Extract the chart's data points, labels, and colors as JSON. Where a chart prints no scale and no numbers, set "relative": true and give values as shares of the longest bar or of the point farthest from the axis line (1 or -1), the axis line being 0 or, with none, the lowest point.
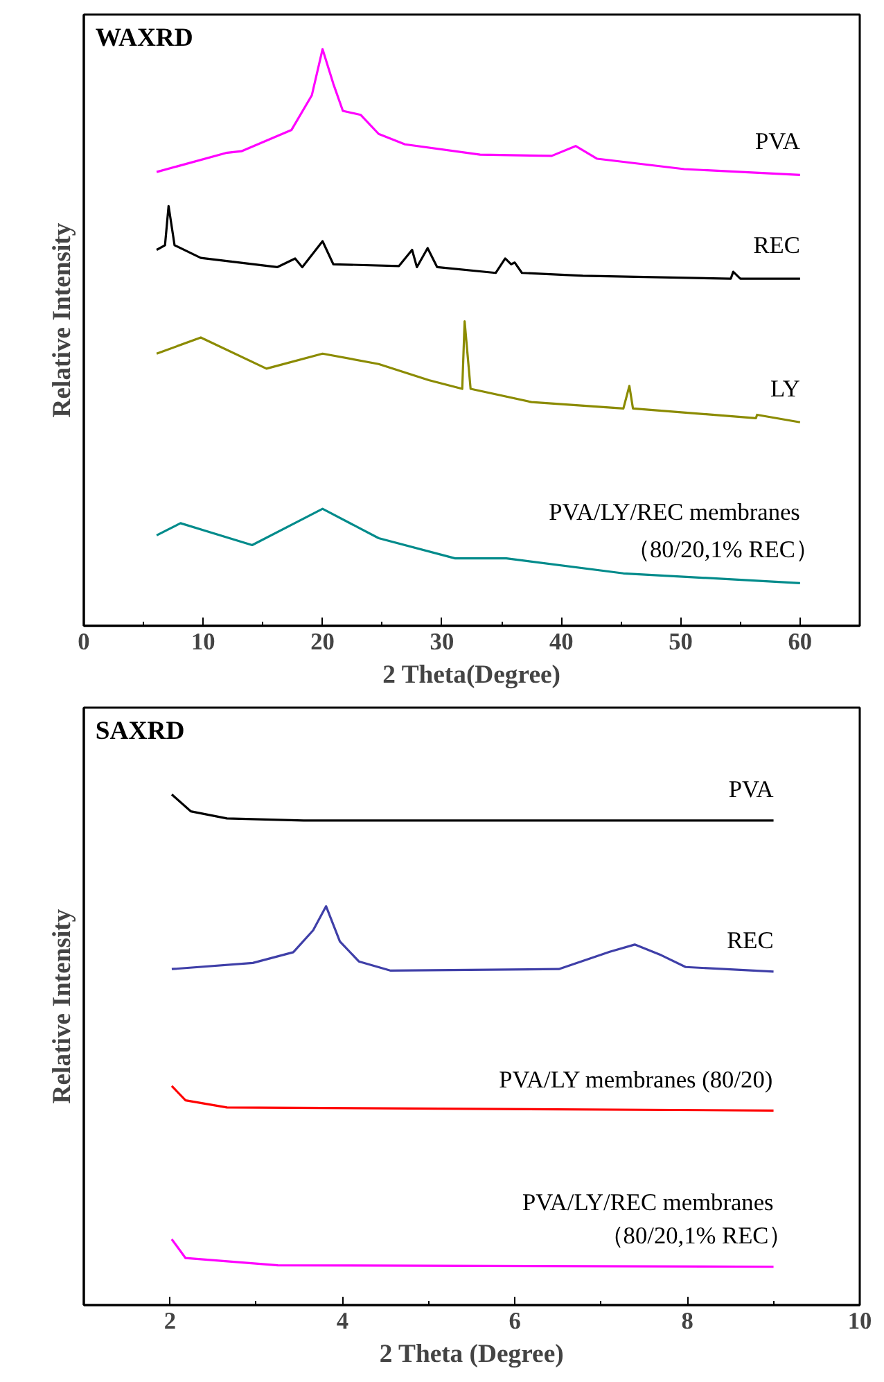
{
  "chart_data": [
    {
      "type": "line",
      "title": "WAXRD",
      "relative": true,
      "xlabel": "2 Theta(Degree)",
      "ylabel": "Relative Intensity",
      "xlim": [
        0,
        65
      ],
      "xticks": [
        0,
        {
          "value": 5,
          "label": null
        },
        10,
        {
          "value": 15,
          "label": null
        },
        20,
        {
          "value": 25,
          "label": null
        },
        30,
        {
          "value": 35,
          "label": null
        },
        40,
        {
          "value": 45,
          "label": null
        },
        50,
        {
          "value": 55,
          "label": null
        },
        60
      ],
      "grid": false,
      "tick_labels": "x",
      "series": [
        {
          "name": "PVA",
          "color": "#ff00ff",
          "x": [
            6.1,
            11.9,
            13.2,
            17.4,
            19.1,
            20.0,
            20.9,
            21.7,
            23.2,
            24.7,
            26.9,
            33.2,
            39.2,
            41.2,
            43.0,
            50.3,
            60
          ],
          "values": [
            0.787,
            0.82,
            0.823,
            0.86,
            0.92,
            1.0,
            0.94,
            0.893,
            0.886,
            0.853,
            0.835,
            0.817,
            0.815,
            0.832,
            0.81,
            0.792,
            0.782
          ]
        },
        {
          "name": "REC",
          "color": "#000000",
          "x": [
            6.1,
            6.8,
            7.1,
            7.6,
            9.8,
            16.2,
            17.7,
            18.3,
            20.0,
            20.9,
            26.4,
            27.5,
            27.9,
            28.8,
            29.6,
            34.5,
            35.3,
            35.8,
            36.1,
            36.7,
            41.8,
            54.2,
            54.4,
            55.0,
            60
          ],
          "values": [
            0.652,
            0.66,
            0.728,
            0.66,
            0.638,
            0.622,
            0.637,
            0.622,
            0.667,
            0.627,
            0.624,
            0.652,
            0.622,
            0.655,
            0.622,
            0.612,
            0.637,
            0.627,
            0.63,
            0.612,
            0.607,
            0.602,
            0.614,
            0.602,
            0.602
          ]
        },
        {
          "name": "LY",
          "color": "#8b8b00",
          "x": [
            6.1,
            9.8,
            15.3,
            20.0,
            24.7,
            28.9,
            31.7,
            31.9,
            32.4,
            37.5,
            45.2,
            45.7,
            46.0,
            56.3,
            56.4,
            60
          ],
          "values": [
            0.472,
            0.5,
            0.446,
            0.472,
            0.454,
            0.426,
            0.411,
            0.528,
            0.411,
            0.388,
            0.377,
            0.416,
            0.377,
            0.36,
            0.366,
            0.353
          ]
        },
        {
          "name": "PVA/LY/REC membranes\n（80/20,1% REC）",
          "color": "#008b8b",
          "x": [
            6.1,
            8.1,
            14.1,
            20.0,
            24.7,
            31.1,
            35.4,
            45.2,
            60
          ],
          "values": [
            0.157,
            0.178,
            0.14,
            0.203,
            0.152,
            0.117,
            0.117,
            0.091,
            0.074
          ]
        }
      ]
    },
    {
      "type": "line",
      "title": "SAXRD",
      "relative": true,
      "xlabel": "2 Theta (Degree)",
      "ylabel": "Relative Intensity",
      "xlim": [
        1,
        10
      ],
      "xticks": [
        {
          "value": 1,
          "label": null
        },
        2,
        {
          "value": 3,
          "label": null
        },
        4,
        {
          "value": 5,
          "label": null
        },
        6,
        {
          "value": 7,
          "label": null
        },
        8,
        {
          "value": 9,
          "label": null
        },
        10
      ],
      "grid": false,
      "tick_labels": "x",
      "series": [
        {
          "name": "PVA",
          "color": "#000000",
          "x": [
            2.02,
            2.24,
            2.66,
            3.55,
            9.0
          ],
          "values": [
            1.0,
            0.967,
            0.953,
            0.949,
            0.949
          ]
        },
        {
          "name": "REC",
          "color": "#3f3fa8",
          "x": [
            2.02,
            2.96,
            3.43,
            3.66,
            3.81,
            3.97,
            4.19,
            4.56,
            6.51,
            7.1,
            7.39,
            7.7,
            7.98,
            9.0
          ],
          "values": [
            0.658,
            0.67,
            0.691,
            0.734,
            0.781,
            0.712,
            0.673,
            0.655,
            0.658,
            0.692,
            0.706,
            0.685,
            0.662,
            0.653
          ]
        },
        {
          "name": "PVA/LY membranes (80/20)",
          "color": "#ff0000",
          "x": [
            2.02,
            2.18,
            2.66,
            9.0
          ],
          "values": [
            0.429,
            0.401,
            0.387,
            0.381
          ]
        },
        {
          "name": "PVA/LY/REC membranes\n（80/20,1% REC）",
          "color": "#ff00ff",
          "x": [
            2.02,
            2.18,
            3.25,
            9.0
          ],
          "values": [
            0.129,
            0.092,
            0.078,
            0.075
          ]
        }
      ]
    }
  ]
}
